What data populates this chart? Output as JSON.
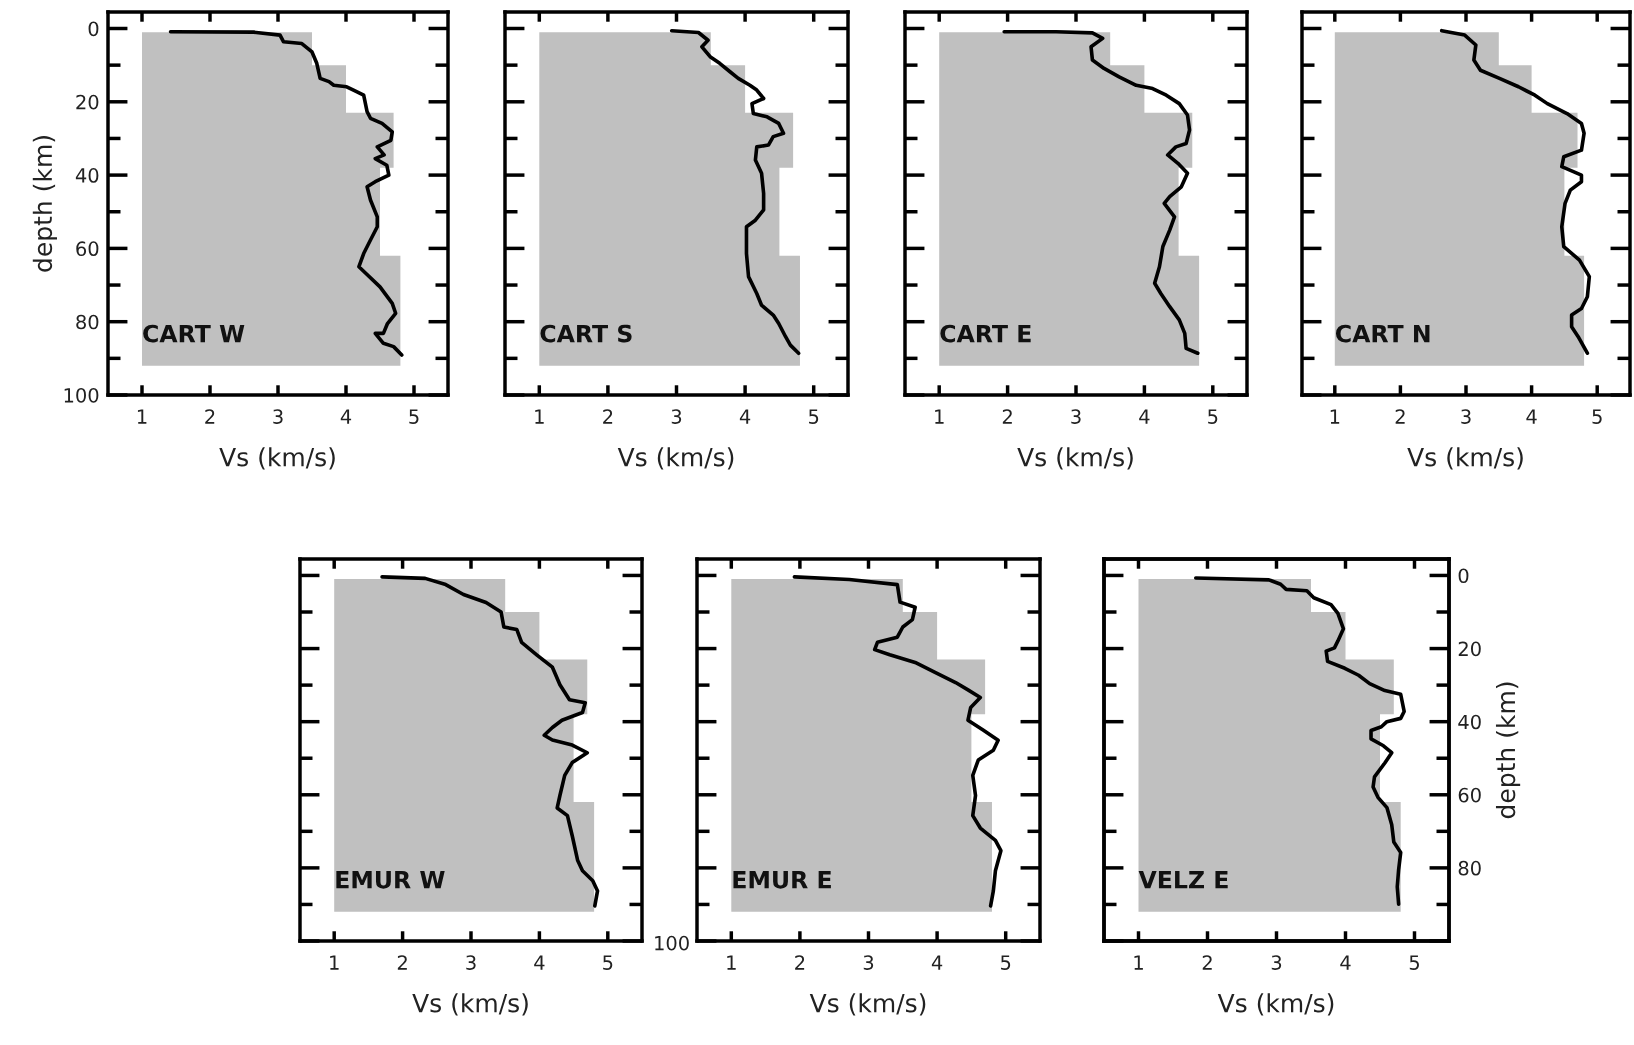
{
  "chart_data": [
    {
      "type": "line",
      "xlabel": "Vs (km/s)",
      "ylabel": "depth (km)",
      "annotations": [
        "CART W"
      ],
      "xlim": [
        0.5,
        5.5
      ],
      "xticks": [
        1,
        2,
        3,
        4,
        5
      ],
      "ylim": [
        100,
        -4.5
      ],
      "yticks": [
        0,
        {
          "value": 10,
          "label": null
        },
        20,
        {
          "value": 30,
          "label": null
        },
        40,
        {
          "value": 50,
          "label": null
        },
        60,
        {
          "value": 70,
          "label": null
        },
        80,
        {
          "value": 90,
          "label": null
        },
        100
      ],
      "series": [
        {
          "type": "area",
          "color": "#c0c0c0",
          "x": [
            1,
            1,
            3.5,
            3.5,
            4.0,
            4.0,
            4.7,
            4.7,
            4.5,
            4.5,
            4.8,
            4.8
          ],
          "values": [
            92,
            1,
            1,
            10,
            10,
            23,
            23,
            38,
            38,
            62,
            62,
            92
          ]
        },
        {
          "color": "#000000",
          "values": [
            0.9,
            1,
            1.8,
            3.6,
            4.1,
            6.4,
            9.5,
            13.6,
            14.5,
            15.5,
            15.9,
            16.8,
            18.2,
            22.7,
            24.5,
            25.9,
            28.2,
            30.5,
            32.3,
            34.5,
            35.5,
            37.3,
            40,
            41.8,
            43.2,
            46.8,
            51.4,
            54.1,
            57.7,
            61.4,
            65,
            66.8,
            70.5,
            75,
            77.7,
            80.5,
            83.2,
            83.2,
            85.9,
            86.8,
            89.1
          ],
          "x": [
            1.42,
            2.64,
            3.03,
            3.08,
            3.35,
            3.5,
            3.57,
            3.62,
            3.75,
            3.82,
            4.01,
            4.11,
            4.26,
            4.31,
            4.36,
            4.53,
            4.68,
            4.66,
            4.46,
            4.56,
            4.43,
            4.6,
            4.63,
            4.43,
            4.31,
            4.36,
            4.46,
            4.46,
            4.36,
            4.26,
            4.19,
            4.29,
            4.5,
            4.68,
            4.73,
            4.61,
            4.55,
            4.43,
            4.55,
            4.7,
            4.82
          ]
        }
      ]
    },
    {
      "type": "line",
      "xlabel": "Vs (km/s)",
      "annotations": [
        "CART S"
      ],
      "tick_labels": "x",
      "xlim": [
        0.5,
        5.5
      ],
      "xticks": [
        1,
        2,
        3,
        4,
        5
      ],
      "ylim": [
        100,
        -4.5
      ],
      "yticks": [
        0,
        {
          "value": 10,
          "label": null
        },
        20,
        {
          "value": 30,
          "label": null
        },
        40,
        {
          "value": 50,
          "label": null
        },
        60,
        {
          "value": 70,
          "label": null
        },
        80,
        {
          "value": 90,
          "label": null
        },
        100
      ],
      "series": [
        {
          "type": "area",
          "color": "#c0c0c0",
          "x": [
            1,
            1,
            3.5,
            3.5,
            4.0,
            4.0,
            4.7,
            4.7,
            4.5,
            4.5,
            4.8,
            4.8
          ],
          "values": [
            92,
            1,
            1,
            10,
            10,
            23,
            23,
            38,
            38,
            62,
            62,
            92
          ]
        },
        {
          "color": "#000000",
          "values": [
            0.6,
            1.1,
            3.2,
            5,
            7.7,
            9.5,
            11.8,
            13.6,
            15.5,
            16.8,
            19.1,
            20.5,
            23.2,
            24.1,
            25.9,
            28.6,
            29.5,
            31.8,
            32.3,
            35.9,
            39.5,
            45,
            49.5,
            52.3,
            54.1,
            61.4,
            67.7,
            72.3,
            75.5,
            78.2,
            80.5,
            84.1,
            86.4,
            88.6
          ],
          "x": [
            2.93,
            3.32,
            3.46,
            3.37,
            3.49,
            3.63,
            3.78,
            3.9,
            4.07,
            4.17,
            4.27,
            4.1,
            4.12,
            4.32,
            4.49,
            4.56,
            4.41,
            4.34,
            4.17,
            4.15,
            4.24,
            4.27,
            4.27,
            4.15,
            4.02,
            4.02,
            4.05,
            4.17,
            4.24,
            4.41,
            4.49,
            4.59,
            4.66,
            4.78
          ]
        }
      ]
    },
    {
      "type": "line",
      "xlabel": "Vs (km/s)",
      "annotations": [
        "CART E"
      ],
      "tick_labels": "x",
      "xlim": [
        0.5,
        5.5
      ],
      "xticks": [
        1,
        2,
        3,
        4,
        5
      ],
      "ylim": [
        100,
        -4.5
      ],
      "yticks": [
        0,
        {
          "value": 10,
          "label": null
        },
        20,
        {
          "value": 30,
          "label": null
        },
        40,
        {
          "value": 50,
          "label": null
        },
        60,
        {
          "value": 70,
          "label": null
        },
        80,
        {
          "value": 90,
          "label": null
        },
        100
      ],
      "series": [
        {
          "type": "area",
          "color": "#c0c0c0",
          "x": [
            1,
            1,
            3.5,
            3.5,
            4.0,
            4.0,
            4.7,
            4.7,
            4.5,
            4.5,
            4.8,
            4.8
          ],
          "values": [
            92,
            1,
            1,
            10,
            10,
            23,
            23,
            38,
            38,
            62,
            62,
            92
          ]
        },
        {
          "color": "#000000",
          "values": [
            0.9,
            0.9,
            1.2,
            2.7,
            5,
            8.6,
            10.9,
            13.2,
            15.5,
            16.4,
            18.2,
            20.5,
            23.6,
            27.7,
            31.4,
            32.3,
            34.5,
            36.8,
            39.5,
            43.2,
            45.9,
            47.7,
            51.4,
            55,
            59.5,
            65,
            69.5,
            72.3,
            75.9,
            79.5,
            83.2,
            87.3,
            88.6
          ],
          "x": [
            1.95,
            2.71,
            3.24,
            3.39,
            3.22,
            3.24,
            3.41,
            3.63,
            3.88,
            4.12,
            4.32,
            4.51,
            4.63,
            4.66,
            4.61,
            4.46,
            4.34,
            4.49,
            4.63,
            4.54,
            4.37,
            4.29,
            4.44,
            4.37,
            4.27,
            4.22,
            4.15,
            4.24,
            4.37,
            4.51,
            4.59,
            4.61,
            4.78
          ]
        }
      ]
    },
    {
      "type": "line",
      "xlabel": "Vs (km/s)",
      "annotations": [
        "CART N"
      ],
      "tick_labels": "x",
      "xlim": [
        0.5,
        5.5
      ],
      "xticks": [
        1,
        2,
        3,
        4,
        5
      ],
      "ylim": [
        100,
        -4.5
      ],
      "yticks": [
        0,
        {
          "value": 10,
          "label": null
        },
        20,
        {
          "value": 30,
          "label": null
        },
        40,
        {
          "value": 50,
          "label": null
        },
        60,
        {
          "value": 70,
          "label": null
        },
        80,
        {
          "value": 90,
          "label": null
        },
        100
      ],
      "series": [
        {
          "type": "area",
          "color": "#c0c0c0",
          "x": [
            1,
            1,
            3.5,
            3.5,
            4.0,
            4.0,
            4.7,
            4.7,
            4.5,
            4.5,
            4.8,
            4.8
          ],
          "values": [
            92,
            1,
            1,
            10,
            10,
            23,
            23,
            38,
            38,
            62,
            62,
            92
          ]
        },
        {
          "color": "#000000",
          "values": [
            0.6,
            1.8,
            4.5,
            8.6,
            11.4,
            13.6,
            15.9,
            18.2,
            20.5,
            23.2,
            25.9,
            28.6,
            33.2,
            35,
            37.7,
            40,
            41.8,
            44.1,
            47.7,
            54.1,
            59.5,
            63.2,
            67.7,
            73.2,
            76.4,
            78.2,
            81.4,
            84.1,
            88.6
          ],
          "x": [
            2.63,
            2.98,
            3.15,
            3.12,
            3.22,
            3.51,
            3.8,
            4.05,
            4.24,
            4.54,
            4.76,
            4.8,
            4.76,
            4.49,
            4.46,
            4.76,
            4.76,
            4.59,
            4.51,
            4.46,
            4.49,
            4.73,
            4.88,
            4.85,
            4.76,
            4.61,
            4.61,
            4.71,
            4.85
          ]
        }
      ]
    },
    {
      "type": "line",
      "xlabel": "Vs (km/s)",
      "annotations": [
        "EMUR W"
      ],
      "tick_labels": "x",
      "xlim": [
        0.5,
        5.5
      ],
      "xticks": [
        1,
        2,
        3,
        4,
        5
      ],
      "ylim": [
        100,
        -4.5
      ],
      "yticks": [
        0,
        {
          "value": 10,
          "label": null
        },
        20,
        {
          "value": 30,
          "label": null
        },
        40,
        {
          "value": 50,
          "label": null
        },
        60,
        {
          "value": 70,
          "label": null
        },
        80,
        {
          "value": 90,
          "label": null
        },
        100
      ],
      "series": [
        {
          "type": "area",
          "color": "#c0c0c0",
          "x": [
            1,
            1,
            3.5,
            3.5,
            4.0,
            4.0,
            4.7,
            4.7,
            4.5,
            4.5,
            4.8,
            4.8
          ],
          "values": [
            92,
            1,
            1,
            10,
            10,
            23,
            23,
            38,
            38,
            62,
            62,
            92
          ]
        },
        {
          "color": "#000000",
          "values": [
            0.4,
            0.8,
            2.5,
            5.2,
            7.4,
            10,
            14.1,
            14.8,
            18.3,
            21.7,
            25.1,
            29.9,
            34,
            34.8,
            37.5,
            39.6,
            41.6,
            43.7,
            45,
            46.4,
            48.5,
            51.2,
            54.7,
            60.2,
            63.6,
            65.7,
            71.2,
            78,
            80.8,
            83.5,
            86.3,
            90.4
          ],
          "x": [
            1.7,
            2.33,
            2.63,
            2.89,
            3.22,
            3.44,
            3.48,
            3.67,
            3.74,
            3.96,
            4.19,
            4.3,
            4.44,
            4.67,
            4.63,
            4.33,
            4.19,
            4.07,
            4.19,
            4.48,
            4.7,
            4.48,
            4.37,
            4.3,
            4.26,
            4.41,
            4.48,
            4.56,
            4.63,
            4.78,
            4.85,
            4.81
          ]
        }
      ]
    },
    {
      "type": "line",
      "xlabel": "Vs (km/s)",
      "annotations": [
        "EMUR E",
        "100"
      ],
      "tick_labels": "x",
      "xlim": [
        0.5,
        5.5
      ],
      "xticks": [
        1,
        2,
        3,
        4,
        5
      ],
      "ylim": [
        100,
        -4.5
      ],
      "yticks": [
        0,
        {
          "value": 10,
          "label": null
        },
        20,
        {
          "value": 30,
          "label": null
        },
        40,
        {
          "value": 50,
          "label": null
        },
        60,
        {
          "value": 70,
          "label": null
        },
        80,
        {
          "value": 90,
          "label": null
        },
        100
      ],
      "series": [
        {
          "type": "area",
          "color": "#c0c0c0",
          "x": [
            1,
            1,
            3.5,
            3.5,
            4.0,
            4.0,
            4.7,
            4.7,
            4.5,
            4.5,
            4.8,
            4.8
          ],
          "values": [
            92,
            1,
            1,
            10,
            10,
            23,
            23,
            38,
            38,
            62,
            62,
            92
          ]
        },
        {
          "color": "#000000",
          "values": [
            0.4,
            1.1,
            2.5,
            7.3,
            8.7,
            12.1,
            14.1,
            16.9,
            18.3,
            20.3,
            21.7,
            23.8,
            26.5,
            29.3,
            31.3,
            33.4,
            36.1,
            39.6,
            42.3,
            45.1,
            47.8,
            50.5,
            54.7,
            60.2,
            65.7,
            69.1,
            72.5,
            75.3,
            80.8,
            86.3,
            90.4
          ],
          "x": [
            1.92,
            2.72,
            3.42,
            3.46,
            3.68,
            3.64,
            3.5,
            3.42,
            3.13,
            3.09,
            3.31,
            3.68,
            3.97,
            4.27,
            4.45,
            4.63,
            4.49,
            4.45,
            4.67,
            4.89,
            4.82,
            4.6,
            4.52,
            4.56,
            4.52,
            4.63,
            4.85,
            4.93,
            4.85,
            4.82,
            4.78
          ]
        }
      ]
    },
    {
      "type": "line",
      "xlabel": "Vs (km/s)",
      "y2label": "depth (km)",
      "annotations": [
        "VELZ E"
      ],
      "xlim": [
        0.5,
        5.5
      ],
      "xticks": [
        1,
        2,
        3,
        4,
        5
      ],
      "y2lim": [
        100,
        -4.5
      ],
      "y2ticks": [
        0,
        {
          "value": 10,
          "label": null
        },
        20,
        {
          "value": 30,
          "label": null
        },
        40,
        {
          "value": 50,
          "label": null
        },
        60,
        {
          "value": 70,
          "label": null
        },
        80,
        {
          "value": 90,
          "label": null
        },
        {
          "value": 100,
          "label": null
        }
      ],
      "series": [
        {
          "type": "area",
          "axis": "y2",
          "color": "#c0c0c0",
          "x": [
            1,
            1,
            3.5,
            3.5,
            4.0,
            4.0,
            4.7,
            4.7,
            4.5,
            4.5,
            4.8,
            4.8
          ],
          "values": [
            92,
            1,
            1,
            10,
            10,
            23,
            23,
            38,
            38,
            62,
            62,
            92
          ]
        },
        {
          "axis": "y2",
          "color": "#000000",
          "values": [
            0.7,
            1.2,
            2.4,
            3.8,
            4.2,
            6.1,
            8,
            10.4,
            14.6,
            17.9,
            19.8,
            20.7,
            23.5,
            25.4,
            27.3,
            29.6,
            31.5,
            32.5,
            37.2,
            39.1,
            40,
            41.4,
            42.4,
            44.7,
            46.6,
            48.5,
            51.3,
            55.1,
            57.9,
            60.7,
            63.5,
            68.2,
            72.9,
            75.8,
            80.5,
            85.2,
            89.9
          ],
          "x": [
            1.83,
            2.89,
            3.06,
            3.14,
            3.44,
            3.54,
            3.79,
            3.89,
            3.97,
            3.89,
            3.84,
            3.72,
            3.74,
            3.99,
            4.19,
            4.35,
            4.57,
            4.8,
            4.85,
            4.8,
            4.6,
            4.52,
            4.37,
            4.37,
            4.55,
            4.67,
            4.57,
            4.42,
            4.4,
            4.47,
            4.6,
            4.67,
            4.7,
            4.8,
            4.77,
            4.75,
            4.77
          ]
        }
      ]
    }
  ]
}
